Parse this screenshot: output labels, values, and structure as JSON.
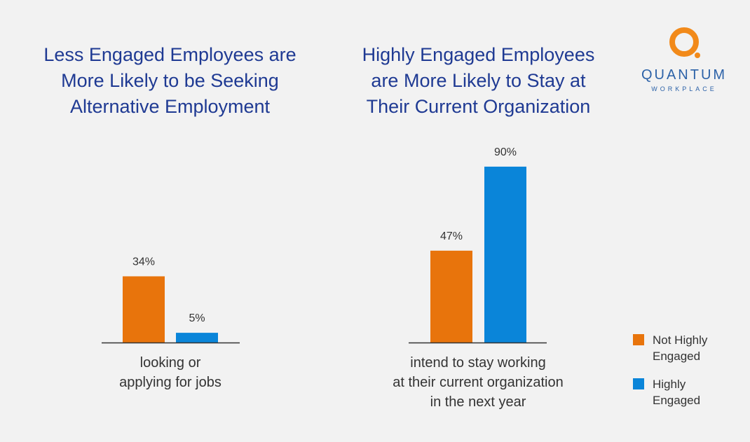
{
  "logo": {
    "name": "QUANTUM",
    "sub": "WORKPLACE"
  },
  "colors": {
    "not_highly": "#e8740c",
    "highly": "#0a85d9",
    "title": "#1f3a93",
    "axis": "#333333"
  },
  "legend": [
    {
      "label": "Not Highly\nEngaged",
      "color": "#e8740c"
    },
    {
      "label": "Highly\nEngaged",
      "color": "#0a85d9"
    }
  ],
  "chart_data": [
    {
      "type": "bar",
      "title": "Less Engaged Employees are\nMore Likely to be Seeking\nAlternative Employment",
      "categories": [
        "looking or\napplying for jobs"
      ],
      "series": [
        {
          "name": "Not Highly Engaged",
          "values": [
            34
          ],
          "labels": [
            "34%"
          ]
        },
        {
          "name": "Highly Engaged",
          "values": [
            5
          ],
          "labels": [
            "5%"
          ]
        }
      ],
      "ylim": [
        0,
        100
      ],
      "grid": false,
      "legend_position": "bottom-right"
    },
    {
      "type": "bar",
      "title": "Highly Engaged Employees\nare More Likely to Stay at\nTheir Current Organization",
      "categories": [
        "intend to stay working\nat their current organization\nin the next year"
      ],
      "series": [
        {
          "name": "Not Highly Engaged",
          "values": [
            47
          ],
          "labels": [
            "47%"
          ]
        },
        {
          "name": "Highly Engaged",
          "values": [
            90
          ],
          "labels": [
            "90%"
          ]
        }
      ],
      "ylim": [
        0,
        100
      ],
      "grid": false,
      "legend_position": "bottom-right"
    }
  ]
}
